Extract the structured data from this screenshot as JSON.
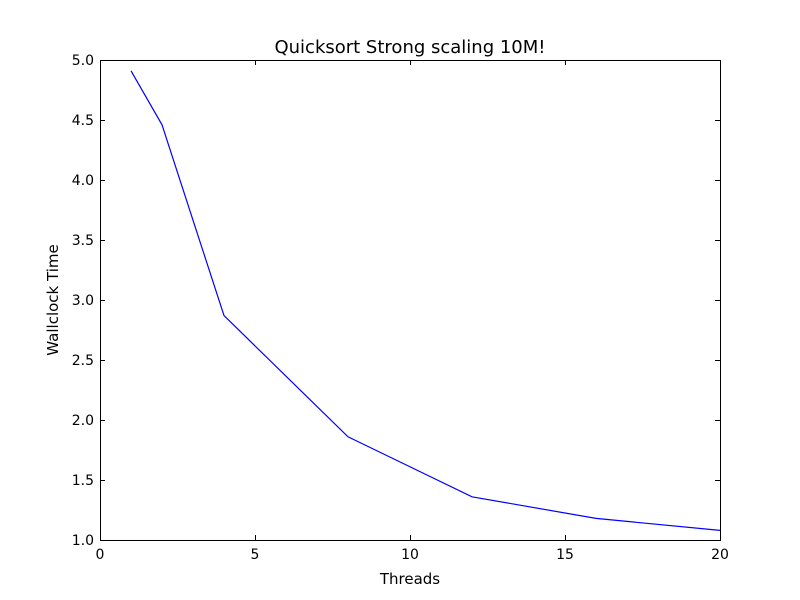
{
  "chart_data": {
    "type": "line",
    "title": "Quicksort Strong scaling 10M!",
    "xlabel": "Threads",
    "ylabel": "Wallclock Time",
    "xlim": [
      0,
      20
    ],
    "ylim": [
      1.0,
      5.0
    ],
    "x_ticks": [
      0,
      5,
      10,
      15,
      20
    ],
    "x_tick_labels": [
      "0",
      "5",
      "10",
      "15",
      "20"
    ],
    "y_ticks": [
      1.0,
      1.5,
      2.0,
      2.5,
      3.0,
      3.5,
      4.0,
      4.5,
      5.0
    ],
    "y_tick_labels": [
      "1.0",
      "1.5",
      "2.0",
      "2.5",
      "3.0",
      "3.5",
      "4.0",
      "4.5",
      "5.0"
    ],
    "grid": false,
    "series": [
      {
        "name": "quicksort",
        "color": "#0000ff",
        "x": [
          1,
          2,
          4,
          8,
          12,
          16,
          20
        ],
        "y": [
          4.91,
          4.46,
          2.87,
          1.86,
          1.36,
          1.18,
          1.08
        ]
      }
    ]
  }
}
